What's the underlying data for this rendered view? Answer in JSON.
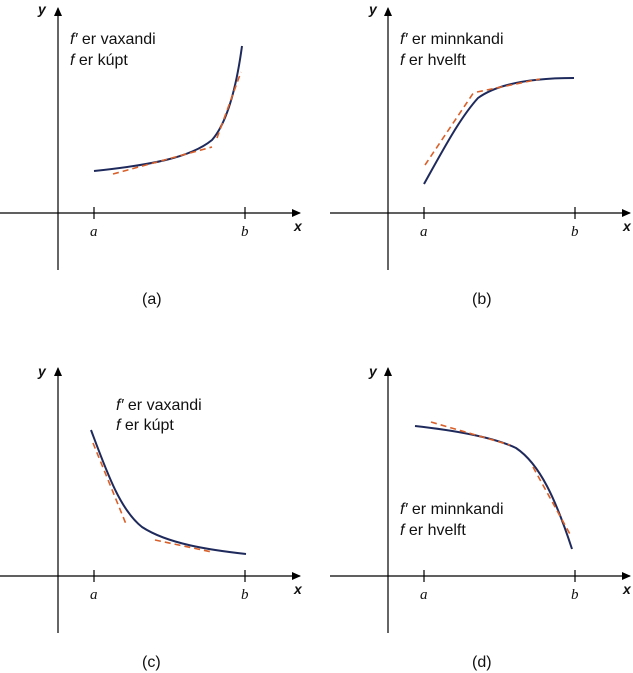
{
  "axes": {
    "x_label": "x",
    "y_label": "y",
    "a_label": "a",
    "b_label": "b"
  },
  "panels": [
    {
      "caption": "(a)",
      "note_line1_fn": "f′",
      "note_line1_text": " er vaxandi",
      "note_line2_fn": "f",
      "note_line2_text": " er kúpt"
    },
    {
      "caption": "(b)",
      "note_line1_fn": "f′",
      "note_line1_text": " er minnkandi",
      "note_line2_fn": "f",
      "note_line2_text": " er hvelft"
    },
    {
      "caption": "(c)",
      "note_line1_fn": "f′",
      "note_line1_text": " er vaxandi",
      "note_line2_fn": "f",
      "note_line2_text": " er kúpt"
    },
    {
      "caption": "(d)",
      "note_line1_fn": "f′",
      "note_line1_text": " er minnkandi",
      "note_line2_fn": "f",
      "note_line2_text": " er hvelft"
    }
  ],
  "colors": {
    "curve": "#1f2a5c",
    "tangent": "#d9602a"
  }
}
